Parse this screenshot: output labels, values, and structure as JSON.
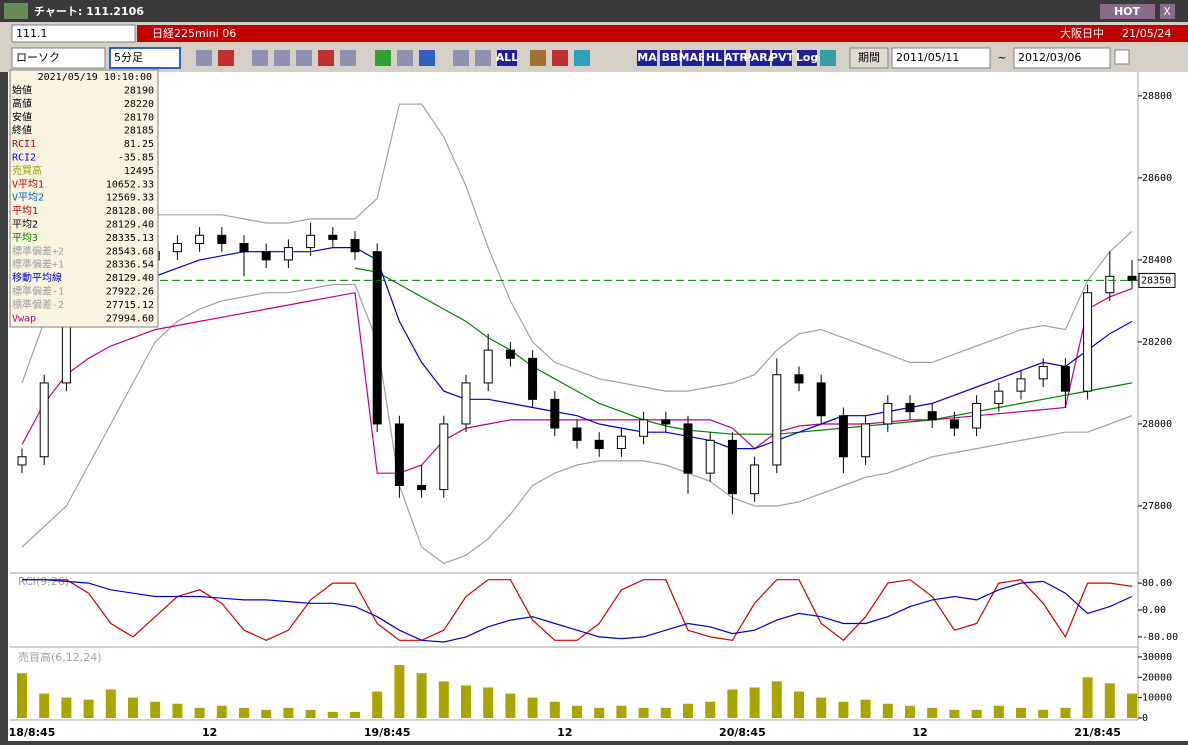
{
  "window": {
    "title": "チャート: 111.2106",
    "hot": "HOT",
    "close": "X"
  },
  "toolbar": {
    "symbol": "111.1",
    "instrument": "日経225mini 06",
    "market": "大阪日中",
    "date": "21/05/24",
    "chart_type": "ローソク",
    "interval": "5分足",
    "period_label": "期間",
    "from": "2011/05/11",
    "tilde": "~",
    "to": "2012/03/06",
    "icons": [
      "ALL",
      "MA",
      "BB",
      "MAE",
      "HL",
      "ATR",
      "PARA",
      "PVT",
      "Log"
    ]
  },
  "info": {
    "datetime": "2021/05/19 10:10:00",
    "rows": [
      [
        "始値",
        "28190",
        "#000000"
      ],
      [
        "高値",
        "28220",
        "#000000"
      ],
      [
        "安値",
        "28170",
        "#000000"
      ],
      [
        "終値",
        "28185",
        "#000000"
      ],
      [
        "RCI1",
        "81.25",
        "#c00000"
      ],
      [
        "RCI2",
        "-35.85",
        "#0000c0"
      ],
      [
        "売買高",
        "12495",
        "#a0a000"
      ],
      [
        "V平均1",
        "10652.33",
        "#c00000"
      ],
      [
        "V平均2",
        "12569.33",
        "#0060c0"
      ],
      [
        "平均1",
        "28128.00",
        "#c00000"
      ],
      [
        "平均2",
        "28129.40",
        "#000000"
      ],
      [
        "平均3",
        "28335.13",
        "#008000"
      ],
      [
        "標準偏差+2",
        "28543.68",
        "#a0a0a0"
      ],
      [
        "標準偏差+1",
        "28336.54",
        "#a0a0a0"
      ],
      [
        "移動平均線",
        "28129.40",
        "#0000c0"
      ],
      [
        "標準偏差-1",
        "27922.26",
        "#a0a0a0"
      ],
      [
        "標準偏差-2",
        "27715.12",
        "#a0a0a0"
      ],
      [
        "Vwap",
        "27994.60",
        "#c00080"
      ]
    ]
  },
  "chart_data": [
    {
      "type": "candlestick",
      "up_color": "#ffffff",
      "down_color": "#000000",
      "last_line_color": "#008000",
      "open": [
        27900,
        27920,
        28100,
        28280,
        28330,
        28380,
        28400,
        28420,
        28440,
        28460,
        28440,
        28420,
        28400,
        28430,
        28460,
        28450,
        28420,
        28000,
        27850,
        27840,
        28000,
        28100,
        28180,
        28160,
        28060,
        27990,
        27960,
        27940,
        27970,
        28010,
        28000,
        27880,
        27960,
        27830,
        27900,
        28120,
        28100,
        28020,
        27920,
        28000,
        28050,
        28030,
        28010,
        27990,
        28050,
        28080,
        28110,
        28140,
        28080,
        28320,
        28360
      ],
      "high": [
        27940,
        28120,
        28300,
        28350,
        28400,
        28420,
        28440,
        28460,
        28480,
        28480,
        28460,
        28440,
        28450,
        28490,
        28480,
        28470,
        28440,
        28020,
        27900,
        28020,
        28120,
        28220,
        28200,
        28180,
        28080,
        28010,
        27980,
        27990,
        28030,
        28030,
        28020,
        27980,
        27980,
        27920,
        28160,
        28140,
        28120,
        28040,
        28020,
        28070,
        28070,
        28050,
        28030,
        28070,
        28100,
        28130,
        28160,
        28160,
        28340,
        28420,
        28400
      ],
      "low": [
        27880,
        27900,
        28080,
        28260,
        28310,
        28360,
        28380,
        28400,
        28420,
        28420,
        28360,
        28380,
        28380,
        28410,
        28430,
        28400,
        27980,
        27820,
        27820,
        27820,
        27980,
        28080,
        28140,
        28040,
        27970,
        27940,
        27920,
        27920,
        27950,
        27980,
        27830,
        27860,
        27780,
        27810,
        27880,
        28080,
        28000,
        27880,
        27900,
        27980,
        28010,
        27990,
        27970,
        27970,
        28030,
        28060,
        28090,
        28040,
        28060,
        28300,
        28330
      ],
      "close": [
        27920,
        28100,
        28280,
        28330,
        28380,
        28400,
        28420,
        28440,
        28460,
        28440,
        28420,
        28400,
        28430,
        28460,
        28450,
        28420,
        28000,
        27850,
        27840,
        28000,
        28100,
        28180,
        28160,
        28060,
        27990,
        27960,
        27940,
        27970,
        28010,
        28000,
        27880,
        27960,
        27830,
        27900,
        28120,
        28100,
        28020,
        27920,
        28000,
        28050,
        28030,
        28010,
        27990,
        28050,
        28080,
        28110,
        28140,
        28080,
        28320,
        28360,
        28350
      ],
      "series": [
        {
          "color": "#a0a0a0",
          "values": [
            28100,
            28250,
            28400,
            28480,
            28500,
            28500,
            28510,
            28510,
            28510,
            28510,
            28500,
            28490,
            28490,
            28500,
            28500,
            28500,
            28550,
            28780,
            28780,
            28700,
            28580,
            28430,
            28300,
            28200,
            28150,
            28130,
            28110,
            28100,
            28090,
            28080,
            28080,
            28090,
            28100,
            28120,
            28180,
            28220,
            28230,
            28210,
            28190,
            28170,
            28150,
            28150,
            28170,
            28190,
            28210,
            28230,
            28240,
            28230,
            28350,
            28420,
            28470
          ]
        },
        {
          "color": "#a0a0a0",
          "values": [
            27700,
            27750,
            27800,
            27900,
            28000,
            28100,
            28200,
            28250,
            28280,
            28300,
            28310,
            28320,
            28320,
            28330,
            28340,
            28340,
            28200,
            27850,
            27700,
            27660,
            27680,
            27720,
            27780,
            27850,
            27880,
            27900,
            27910,
            27910,
            27910,
            27900,
            27880,
            27860,
            27820,
            27800,
            27800,
            27810,
            27830,
            27850,
            27870,
            27880,
            27900,
            27920,
            27930,
            27940,
            27950,
            27960,
            27970,
            27980,
            27980,
            28000,
            28020
          ]
        },
        {
          "color": "#c00080",
          "values": [
            27950,
            28050,
            28120,
            28160,
            28190,
            28210,
            28230,
            28240,
            28250,
            28260,
            28270,
            28280,
            28290,
            28300,
            28310,
            28320,
            27880,
            27880,
            27900,
            27960,
            27990,
            28000,
            28010,
            28010,
            28010,
            28010,
            28010,
            28010,
            28010,
            28010,
            28010,
            28010,
            27990,
            27940,
            27980,
            27995,
            28000,
            28000,
            28000,
            28005,
            28010,
            28010,
            28015,
            28020,
            28025,
            28030,
            28035,
            28040,
            28280,
            28310,
            28330
          ]
        },
        {
          "color": "#008000",
          "values": [
            null,
            null,
            null,
            null,
            null,
            null,
            null,
            null,
            null,
            null,
            null,
            null,
            null,
            null,
            null,
            28380,
            28370,
            28340,
            28310,
            28280,
            28250,
            28210,
            28180,
            28140,
            28110,
            28080,
            28050,
            28030,
            28010,
            27995,
            27985,
            27980,
            27975,
            27975,
            27975,
            27980,
            27985,
            27990,
            27995,
            28000,
            28005,
            28010,
            28020,
            28030,
            28040,
            28050,
            28060,
            28070,
            28080,
            28090,
            28100
          ]
        },
        {
          "color": "#0000c0",
          "values": [
            null,
            null,
            null,
            28250,
            28300,
            28330,
            28360,
            28380,
            28400,
            28410,
            28420,
            28420,
            28420,
            28420,
            28430,
            28430,
            28400,
            28250,
            28150,
            28080,
            28060,
            28060,
            28050,
            28040,
            28030,
            28020,
            28000,
            27990,
            27980,
            27980,
            27970,
            27960,
            27940,
            27940,
            27960,
            27980,
            28000,
            28020,
            28020,
            28030,
            28040,
            28050,
            28070,
            28090,
            28110,
            28130,
            28150,
            28140,
            28180,
            28220,
            28250
          ]
        }
      ],
      "ylim": [
        27639,
        28846
      ],
      "yticks": [
        27800,
        28000,
        28200,
        28400,
        28600,
        28800
      ]
    },
    {
      "type": "line",
      "title": "RCI(9,26)",
      "series": [
        {
          "color": "#d00000",
          "values": [
            90,
            90,
            90,
            50,
            -40,
            -80,
            -20,
            40,
            60,
            20,
            -60,
            -90,
            -60,
            30,
            80,
            80,
            -40,
            -90,
            -90,
            -60,
            40,
            90,
            90,
            -30,
            -90,
            -90,
            -40,
            60,
            90,
            90,
            -60,
            -80,
            -90,
            20,
            90,
            90,
            -40,
            -90,
            -20,
            80,
            90,
            40,
            -60,
            -40,
            80,
            90,
            20,
            -80,
            80,
            80,
            70
          ]
        },
        {
          "color": "#0000c0",
          "values": [
            90,
            90,
            85,
            80,
            60,
            50,
            40,
            40,
            40,
            35,
            30,
            30,
            25,
            20,
            20,
            10,
            -20,
            -60,
            -90,
            -95,
            -80,
            -50,
            -30,
            -20,
            -40,
            -60,
            -80,
            -85,
            -80,
            -60,
            -40,
            -50,
            -70,
            -60,
            -30,
            -10,
            -20,
            -40,
            -40,
            -20,
            10,
            30,
            40,
            30,
            60,
            80,
            85,
            50,
            -10,
            10,
            40
          ]
        }
      ],
      "ylim": [
        -104,
        104
      ],
      "yticks": [
        {
          "value": 80,
          "label": "80.00"
        },
        {
          "value": 0,
          "label": "0.00"
        },
        {
          "value": -80,
          "label": "-80.00"
        }
      ]
    },
    {
      "type": "bar",
      "title": "売買高(6,12,24)",
      "color": "#a8a400",
      "categories": [
        "18/8:45",
        null,
        null,
        null,
        null,
        null,
        null,
        null,
        "12",
        null,
        null,
        null,
        null,
        null,
        null,
        null,
        "19/8:45",
        null,
        null,
        null,
        null,
        null,
        null,
        null,
        "12",
        null,
        null,
        null,
        null,
        null,
        null,
        null,
        "20/8:45",
        null,
        null,
        null,
        null,
        null,
        null,
        null,
        "12",
        null,
        null,
        null,
        null,
        null,
        null,
        null,
        "21/8:45",
        null,
        null
      ],
      "values": [
        22000,
        12000,
        10000,
        9000,
        14000,
        10000,
        8000,
        7000,
        5000,
        6000,
        5000,
        4000,
        5000,
        4000,
        3000,
        3000,
        13000,
        26000,
        22000,
        18000,
        16000,
        15000,
        12000,
        10000,
        8000,
        6000,
        5000,
        6000,
        5000,
        5000,
        7000,
        8000,
        14000,
        15000,
        18000,
        13000,
        10000,
        8000,
        9000,
        7000,
        6000,
        5000,
        4000,
        4000,
        6000,
        5000,
        4000,
        5000,
        20000,
        17000,
        12000
      ],
      "ylim": [
        0,
        33400
      ],
      "yticks": [
        0,
        10000,
        20000,
        30000
      ]
    }
  ]
}
